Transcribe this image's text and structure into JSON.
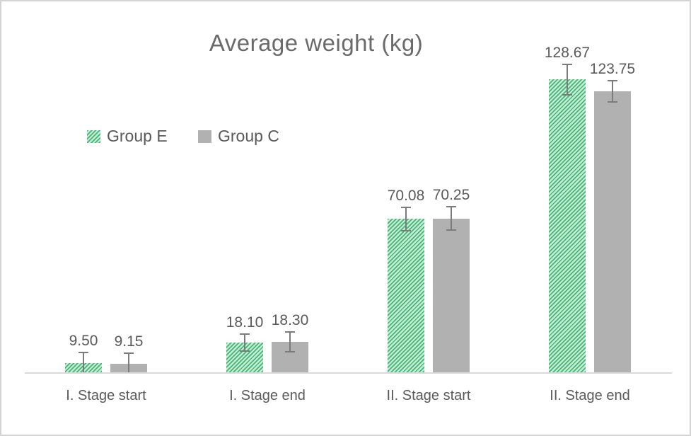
{
  "chart_data": {
    "type": "bar",
    "title": "Average weight (kg)",
    "xlabel": "",
    "ylabel": "",
    "categories": [
      "I. Stage start",
      "I. Stage end",
      "II. Stage start",
      "II. Stage end"
    ],
    "series": [
      {
        "name": "Group E",
        "values": [
          9.5,
          18.1,
          70.08,
          128.67
        ],
        "data_labels": [
          "9.50",
          "18.10",
          "70.08",
          "128.67"
        ],
        "fill_style": "green-diagonal-hatch",
        "error_bars_est_kg": [
          4.8,
          3.9,
          5.2,
          6.6
        ]
      },
      {
        "name": "Group C",
        "values": [
          9.15,
          18.3,
          70.25,
          123.75
        ],
        "data_labels": [
          "9.15",
          "18.30",
          "70.25",
          "123.75"
        ],
        "fill_style": "solid-gray",
        "error_bars_est_kg": [
          4.8,
          4.5,
          5.2,
          4.8
        ]
      }
    ],
    "ylim": [
      5,
      150
    ],
    "y_axis_hidden": true,
    "grid": false,
    "legend_position": "inside-upper-left",
    "data_labels_shown": true,
    "error_bars_shown": true
  },
  "colors": {
    "hatch_stripe_green": "#49b274",
    "hatch_background_green": "#c2efd6",
    "gray_bar": "#b1b1b1",
    "error_bar": "#7b7b7b",
    "text": "#595959",
    "title_text": "#6a6a6a",
    "axis_line": "#d9d9d9",
    "canvas_border": "#d4d4d4",
    "background": "#ffffff"
  }
}
